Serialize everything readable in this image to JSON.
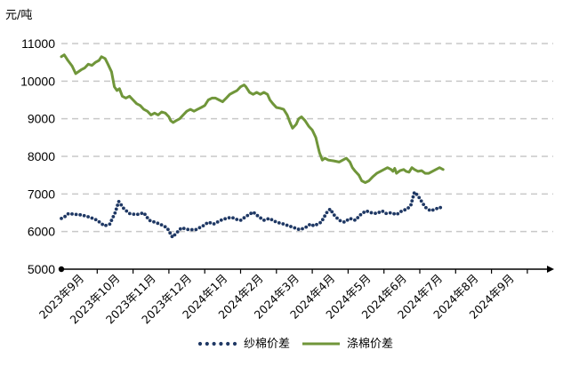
{
  "chart_data": {
    "type": "line",
    "unit_label": "元/吨",
    "title": "",
    "xlabel": "",
    "ylabel": "元/吨",
    "ylim": [
      5000,
      11000
    ],
    "yticks": [
      "5000",
      "6000",
      "7000",
      "8000",
      "9000",
      "10000",
      "11000"
    ],
    "grid": true,
    "legend_position": "bottom-center",
    "categories": [
      "2023年9月",
      "2023年10月",
      "2023年11月",
      "2023年12月",
      "2024年1月",
      "2024年2月",
      "2024年3月",
      "2024年4月",
      "2024年5月",
      "2024年6月",
      "2024年7月",
      "2024年8月",
      "2024年9月"
    ],
    "series": [
      {
        "name": "纱棉价差",
        "style": "dotted",
        "color": "#1f3864",
        "points": [
          [
            0.0,
            6350
          ],
          [
            0.1,
            6400
          ],
          [
            0.2,
            6480
          ],
          [
            0.35,
            6460
          ],
          [
            0.5,
            6450
          ],
          [
            0.65,
            6420
          ],
          [
            0.8,
            6380
          ],
          [
            1.0,
            6300
          ],
          [
            1.2,
            6150
          ],
          [
            1.35,
            6200
          ],
          [
            1.5,
            6500
          ],
          [
            1.6,
            6800
          ],
          [
            1.75,
            6600
          ],
          [
            1.9,
            6480
          ],
          [
            2.1,
            6450
          ],
          [
            2.3,
            6500
          ],
          [
            2.45,
            6300
          ],
          [
            2.6,
            6250
          ],
          [
            2.75,
            6200
          ],
          [
            2.95,
            6100
          ],
          [
            3.1,
            5850
          ],
          [
            3.25,
            6000
          ],
          [
            3.35,
            6100
          ],
          [
            3.55,
            6050
          ],
          [
            3.75,
            6050
          ],
          [
            3.95,
            6150
          ],
          [
            4.1,
            6250
          ],
          [
            4.25,
            6200
          ],
          [
            4.45,
            6300
          ],
          [
            4.6,
            6350
          ],
          [
            4.75,
            6380
          ],
          [
            4.9,
            6320
          ],
          [
            5.0,
            6300
          ],
          [
            5.15,
            6400
          ],
          [
            5.35,
            6520
          ],
          [
            5.5,
            6400
          ],
          [
            5.65,
            6300
          ],
          [
            5.8,
            6350
          ],
          [
            6.0,
            6250
          ],
          [
            6.2,
            6200
          ],
          [
            6.35,
            6150
          ],
          [
            6.5,
            6100
          ],
          [
            6.65,
            6050
          ],
          [
            6.8,
            6100
          ],
          [
            6.95,
            6200
          ],
          [
            7.05,
            6150
          ],
          [
            7.25,
            6250
          ],
          [
            7.4,
            6500
          ],
          [
            7.5,
            6600
          ],
          [
            7.6,
            6450
          ],
          [
            7.75,
            6300
          ],
          [
            7.9,
            6250
          ],
          [
            8.05,
            6350
          ],
          [
            8.2,
            6300
          ],
          [
            8.35,
            6450
          ],
          [
            8.5,
            6550
          ],
          [
            8.65,
            6500
          ],
          [
            8.8,
            6480
          ],
          [
            8.95,
            6550
          ],
          [
            9.05,
            6480
          ],
          [
            9.2,
            6500
          ],
          [
            9.35,
            6450
          ],
          [
            9.5,
            6550
          ],
          [
            9.65,
            6600
          ],
          [
            9.75,
            6700
          ],
          [
            9.85,
            7050
          ],
          [
            9.95,
            6950
          ],
          [
            10.05,
            6800
          ],
          [
            10.15,
            6650
          ],
          [
            10.3,
            6550
          ],
          [
            10.45,
            6600
          ],
          [
            10.55,
            6650
          ],
          [
            10.65,
            6600
          ]
        ]
      },
      {
        "name": "涤棉价差",
        "style": "solid",
        "color": "#70963a",
        "points": [
          [
            0.0,
            10650
          ],
          [
            0.08,
            10700
          ],
          [
            0.18,
            10550
          ],
          [
            0.3,
            10400
          ],
          [
            0.4,
            10200
          ],
          [
            0.55,
            10300
          ],
          [
            0.65,
            10350
          ],
          [
            0.75,
            10450
          ],
          [
            0.85,
            10420
          ],
          [
            0.95,
            10500
          ],
          [
            1.05,
            10550
          ],
          [
            1.12,
            10650
          ],
          [
            1.22,
            10600
          ],
          [
            1.3,
            10450
          ],
          [
            1.4,
            10250
          ],
          [
            1.48,
            9850
          ],
          [
            1.55,
            9750
          ],
          [
            1.62,
            9800
          ],
          [
            1.7,
            9600
          ],
          [
            1.8,
            9550
          ],
          [
            1.9,
            9600
          ],
          [
            2.0,
            9500
          ],
          [
            2.1,
            9400
          ],
          [
            2.2,
            9350
          ],
          [
            2.3,
            9250
          ],
          [
            2.4,
            9200
          ],
          [
            2.5,
            9100
          ],
          [
            2.6,
            9150
          ],
          [
            2.7,
            9100
          ],
          [
            2.8,
            9180
          ],
          [
            2.9,
            9150
          ],
          [
            3.0,
            9050
          ],
          [
            3.05,
            8950
          ],
          [
            3.12,
            8900
          ],
          [
            3.2,
            8950
          ],
          [
            3.3,
            9000
          ],
          [
            3.4,
            9100
          ],
          [
            3.5,
            9200
          ],
          [
            3.6,
            9250
          ],
          [
            3.7,
            9200
          ],
          [
            3.8,
            9250
          ],
          [
            3.9,
            9300
          ],
          [
            4.0,
            9350
          ],
          [
            4.1,
            9500
          ],
          [
            4.2,
            9550
          ],
          [
            4.3,
            9550
          ],
          [
            4.4,
            9500
          ],
          [
            4.5,
            9450
          ],
          [
            4.6,
            9550
          ],
          [
            4.7,
            9650
          ],
          [
            4.8,
            9700
          ],
          [
            4.9,
            9750
          ],
          [
            5.0,
            9850
          ],
          [
            5.1,
            9900
          ],
          [
            5.15,
            9850
          ],
          [
            5.25,
            9700
          ],
          [
            5.35,
            9650
          ],
          [
            5.45,
            9700
          ],
          [
            5.55,
            9650
          ],
          [
            5.65,
            9700
          ],
          [
            5.75,
            9650
          ],
          [
            5.82,
            9500
          ],
          [
            5.9,
            9400
          ],
          [
            6.0,
            9300
          ],
          [
            6.1,
            9280
          ],
          [
            6.2,
            9250
          ],
          [
            6.3,
            9100
          ],
          [
            6.38,
            8900
          ],
          [
            6.45,
            8750
          ],
          [
            6.55,
            8850
          ],
          [
            6.62,
            9000
          ],
          [
            6.7,
            9050
          ],
          [
            6.8,
            8950
          ],
          [
            6.9,
            8800
          ],
          [
            7.0,
            8700
          ],
          [
            7.1,
            8500
          ],
          [
            7.15,
            8300
          ],
          [
            7.2,
            8100
          ],
          [
            7.28,
            7900
          ],
          [
            7.35,
            7950
          ],
          [
            7.45,
            7900
          ],
          [
            7.6,
            7880
          ],
          [
            7.75,
            7850
          ],
          [
            7.85,
            7900
          ],
          [
            7.95,
            7950
          ],
          [
            8.05,
            7850
          ],
          [
            8.12,
            7700
          ],
          [
            8.2,
            7600
          ],
          [
            8.3,
            7500
          ],
          [
            8.38,
            7350
          ],
          [
            8.48,
            7300
          ],
          [
            8.58,
            7350
          ],
          [
            8.68,
            7450
          ],
          [
            8.8,
            7550
          ],
          [
            8.9,
            7600
          ],
          [
            9.0,
            7650
          ],
          [
            9.1,
            7700
          ],
          [
            9.2,
            7650
          ],
          [
            9.25,
            7600
          ],
          [
            9.3,
            7680
          ],
          [
            9.35,
            7550
          ],
          [
            9.45,
            7620
          ],
          [
            9.55,
            7650
          ],
          [
            9.62,
            7600
          ],
          [
            9.7,
            7580
          ],
          [
            9.78,
            7700
          ],
          [
            9.85,
            7650
          ],
          [
            9.95,
            7600
          ],
          [
            10.05,
            7620
          ],
          [
            10.15,
            7550
          ],
          [
            10.25,
            7550
          ],
          [
            10.35,
            7600
          ],
          [
            10.45,
            7650
          ],
          [
            10.55,
            7700
          ],
          [
            10.65,
            7650
          ]
        ]
      }
    ]
  }
}
